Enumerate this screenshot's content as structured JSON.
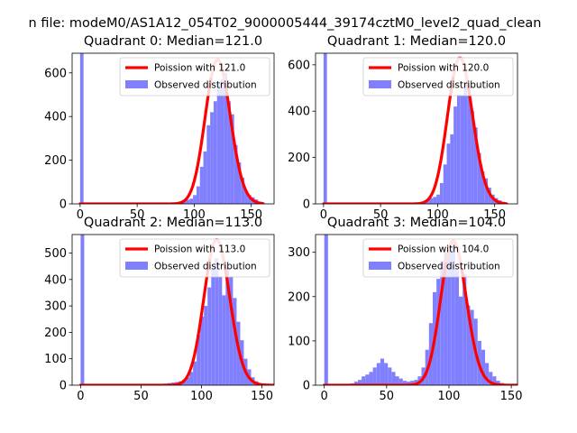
{
  "figure": {
    "suptitle": "n file: modeM0/AS1A12_054T02_9000005444_39174cztM0_level2_quad_clean"
  },
  "colors": {
    "hist": "#8080ff",
    "poisson": "#ff0000",
    "poisson_peak": "#ff8080",
    "axes": "#000000",
    "background": "#ffffff"
  },
  "chart_data": [
    {
      "type": "bar",
      "title": "Quadrant 0: Median=121.0",
      "xlim": [
        -7,
        170
      ],
      "ylim": [
        0,
        690
      ],
      "xticks": [
        0,
        50,
        100,
        150
      ],
      "yticks": [
        0,
        200,
        400,
        600
      ],
      "legend_position": "upper right",
      "legend": [
        "Poission with 121.0",
        "Observed distribution"
      ],
      "poisson_mean": 121,
      "poisson_peak": 660,
      "hist_bin_width": 3,
      "hist_x": [
        0,
        75,
        78,
        81,
        84,
        87,
        90,
        93,
        96,
        99,
        102,
        105,
        108,
        111,
        114,
        117,
        120,
        123,
        126,
        129,
        132,
        135,
        138,
        141,
        144,
        147,
        150,
        153,
        156,
        159
      ],
      "hist_y": [
        690,
        1,
        2,
        3,
        4,
        8,
        16,
        19,
        24,
        40,
        80,
        170,
        240,
        360,
        420,
        470,
        550,
        570,
        600,
        470,
        410,
        270,
        190,
        120,
        60,
        40,
        30,
        20,
        10,
        6
      ]
    },
    {
      "type": "bar",
      "title": "Quadrant 1: Median=120.0",
      "xlim": [
        -7,
        170
      ],
      "ylim": [
        0,
        650
      ],
      "xticks": [
        0,
        50,
        100,
        150
      ],
      "yticks": [
        0,
        200,
        400,
        600
      ],
      "legend_position": "upper right",
      "legend": [
        "Poission with 120.0",
        "Observed distribution"
      ],
      "poisson_mean": 120,
      "poisson_peak": 630,
      "hist_bin_width": 3,
      "hist_x": [
        0,
        75,
        78,
        81,
        84,
        87,
        90,
        93,
        96,
        99,
        102,
        105,
        108,
        111,
        114,
        117,
        120,
        123,
        126,
        129,
        132,
        135,
        138,
        141,
        144,
        147,
        150,
        153,
        156,
        159
      ],
      "hist_y": [
        650,
        1,
        2,
        3,
        5,
        10,
        20,
        25,
        30,
        40,
        90,
        170,
        260,
        300,
        420,
        470,
        470,
        520,
        470,
        400,
        330,
        220,
        140,
        110,
        70,
        40,
        25,
        15,
        8,
        4
      ]
    },
    {
      "type": "bar",
      "title": "Quadrant 2: Median=113.0",
      "xlim": [
        -7,
        160
      ],
      "ylim": [
        0,
        570
      ],
      "xticks": [
        0,
        50,
        100,
        150
      ],
      "yticks": [
        0,
        100,
        200,
        300,
        400,
        500
      ],
      "legend_position": "upper right",
      "legend": [
        "Poission with 113.0",
        "Observed distribution"
      ],
      "poisson_mean": 113,
      "poisson_peak": 550,
      "hist_bin_width": 3,
      "hist_x": [
        0,
        60,
        63,
        66,
        69,
        72,
        75,
        78,
        81,
        84,
        87,
        90,
        93,
        96,
        99,
        102,
        105,
        108,
        111,
        114,
        117,
        120,
        123,
        126,
        129,
        132,
        135,
        138,
        141,
        144,
        147
      ],
      "hist_y": [
        570,
        2,
        3,
        4,
        6,
        8,
        10,
        12,
        15,
        20,
        30,
        50,
        90,
        190,
        260,
        300,
        370,
        440,
        480,
        410,
        340,
        440,
        410,
        330,
        240,
        170,
        100,
        60,
        30,
        15,
        5
      ]
    },
    {
      "type": "bar",
      "title": "Quadrant 3: Median=104.0",
      "xlim": [
        -7,
        155
      ],
      "ylim": [
        0,
        340
      ],
      "xticks": [
        0,
        50,
        100,
        150
      ],
      "yticks": [
        0,
        100,
        200,
        300
      ],
      "legend_position": "upper right",
      "legend": [
        "Poission with 104.0",
        "Observed distribution"
      ],
      "poisson_mean": 104,
      "poisson_peak": 325,
      "hist_bin_width": 3,
      "hist_x": [
        0,
        18,
        21,
        24,
        27,
        30,
        33,
        36,
        39,
        42,
        45,
        48,
        51,
        54,
        57,
        60,
        63,
        66,
        69,
        72,
        75,
        78,
        81,
        84,
        87,
        90,
        93,
        96,
        99,
        102,
        105,
        108,
        111,
        114,
        117,
        120,
        123,
        126,
        129,
        132,
        135,
        138,
        141
      ],
      "hist_y": [
        340,
        2,
        4,
        8,
        12,
        20,
        24,
        30,
        40,
        50,
        60,
        50,
        40,
        30,
        20,
        15,
        10,
        8,
        10,
        12,
        20,
        40,
        80,
        140,
        210,
        240,
        280,
        300,
        300,
        310,
        260,
        200,
        250,
        180,
        170,
        150,
        100,
        80,
        50,
        30,
        20,
        10,
        5
      ]
    }
  ]
}
